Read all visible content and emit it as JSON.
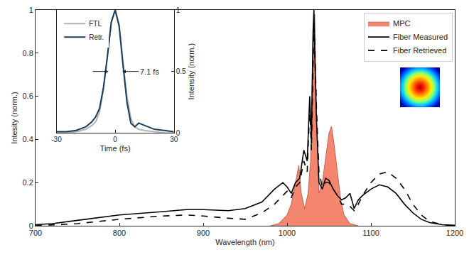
{
  "chart_data": [
    {
      "type": "line",
      "xlabel": "Wavelength (nm)",
      "ylabel": "Intesity (norm.)",
      "xlim": [
        700,
        1200
      ],
      "xticks": [
        700,
        800,
        900,
        1000,
        1100,
        1200
      ],
      "ylim": [
        0,
        1
      ],
      "yticks": [
        0,
        0.2,
        0.4,
        0.6,
        0.8,
        1
      ],
      "legend": "upper right",
      "series": [
        {
          "name": "MPC",
          "type": "area",
          "color": "#f4866f",
          "x": [
            980,
            990,
            1000,
            1005,
            1010,
            1014,
            1017,
            1021,
            1025,
            1028,
            1031,
            1033,
            1035,
            1038,
            1042,
            1046,
            1050,
            1053,
            1056,
            1060,
            1064,
            1068,
            1075,
            1085
          ],
          "values": [
            0,
            0.01,
            0.05,
            0.1,
            0.2,
            0.28,
            0.15,
            0.08,
            0.15,
            0.3,
            0.9,
            0.98,
            0.5,
            0.15,
            0.2,
            0.32,
            0.43,
            0.46,
            0.38,
            0.25,
            0.12,
            0.05,
            0.01,
            0
          ]
        },
        {
          "name": "Fiber Measured",
          "type": "line",
          "color": "#000000",
          "line_style": "solid",
          "x": [
            700,
            720,
            750,
            780,
            800,
            850,
            880,
            900,
            930,
            950,
            970,
            985,
            995,
            1000,
            1005,
            1010,
            1015,
            1020,
            1024,
            1027,
            1029,
            1031,
            1032,
            1033,
            1035,
            1038,
            1042,
            1046,
            1050,
            1055,
            1060,
            1065,
            1070,
            1075,
            1080,
            1085,
            1090,
            1100,
            1110,
            1120,
            1130,
            1140,
            1150,
            1160,
            1170,
            1185,
            1200
          ],
          "values": [
            0.005,
            0.01,
            0.025,
            0.04,
            0.05,
            0.065,
            0.075,
            0.075,
            0.07,
            0.08,
            0.11,
            0.17,
            0.2,
            0.18,
            0.15,
            0.2,
            0.22,
            0.35,
            0.3,
            0.6,
            0.4,
            0.9,
            1.0,
            0.8,
            0.5,
            0.2,
            0.17,
            0.22,
            0.21,
            0.17,
            0.14,
            0.12,
            0.13,
            0.15,
            0.08,
            0.12,
            0.14,
            0.17,
            0.19,
            0.18,
            0.15,
            0.1,
            0.06,
            0.03,
            0.015,
            0.005,
            0.002
          ]
        },
        {
          "name": "Fiber Retrieved",
          "type": "line",
          "color": "#000000",
          "line_style": "dashed",
          "x": [
            700,
            750,
            800,
            850,
            880,
            900,
            930,
            950,
            970,
            985,
            995,
            1000,
            1005,
            1010,
            1015,
            1020,
            1024,
            1027,
            1029,
            1031,
            1032,
            1033,
            1035,
            1038,
            1042,
            1046,
            1050,
            1055,
            1060,
            1065,
            1070,
            1075,
            1080,
            1085,
            1090,
            1100,
            1110,
            1120,
            1130,
            1140,
            1150,
            1160,
            1170,
            1185,
            1200
          ],
          "values": [
            0,
            0.01,
            0.03,
            0.045,
            0.05,
            0.045,
            0.035,
            0.03,
            0.06,
            0.1,
            0.14,
            0.16,
            0.13,
            0.18,
            0.2,
            0.3,
            0.25,
            0.55,
            0.35,
            0.8,
            0.95,
            0.85,
            0.55,
            0.25,
            0.18,
            0.2,
            0.2,
            0.17,
            0.14,
            0.1,
            0.1,
            0.09,
            0.07,
            0.1,
            0.14,
            0.2,
            0.24,
            0.25,
            0.22,
            0.17,
            0.1,
            0.05,
            0.02,
            0.005,
            0
          ]
        }
      ]
    },
    {
      "type": "line",
      "xlabel": "Time (fs)",
      "ylabel": "Intensity (norm.)",
      "xlim": [
        -30,
        30
      ],
      "xticks": [
        -30,
        0,
        30
      ],
      "ylim": [
        0,
        1
      ],
      "yticks": [
        0,
        0.5,
        1
      ],
      "legend": "upper left",
      "annotations": [
        {
          "text": "7.1 fs"
        }
      ],
      "series": [
        {
          "name": "FTL",
          "type": "line",
          "color": "#b3b3b3",
          "line_style": "solid",
          "x": [
            -30,
            -25,
            -20,
            -15,
            -12,
            -10,
            -8,
            -6,
            -4,
            -2,
            0,
            2,
            4,
            6,
            8,
            10,
            12,
            15,
            20,
            25,
            30
          ],
          "values": [
            0,
            0,
            0.01,
            0.03,
            0.06,
            0.09,
            0.17,
            0.35,
            0.62,
            0.9,
            1,
            0.88,
            0.58,
            0.3,
            0.12,
            0.05,
            0.03,
            0.02,
            0.01,
            0,
            0
          ]
        },
        {
          "name": "Retr.",
          "type": "line",
          "color": "#1a3d5c",
          "line_style": "solid",
          "x": [
            -30,
            -25,
            -20,
            -15,
            -12,
            -10,
            -8,
            -6,
            -4,
            -2,
            0,
            2,
            4,
            6,
            8,
            10,
            12,
            15,
            20,
            25,
            30
          ],
          "values": [
            0.01,
            0.01,
            0.02,
            0.05,
            0.09,
            0.13,
            0.2,
            0.37,
            0.62,
            0.9,
            1,
            0.87,
            0.55,
            0.25,
            0.08,
            0.05,
            0.08,
            0.06,
            0.03,
            0.02,
            0.01
          ]
        }
      ]
    }
  ]
}
